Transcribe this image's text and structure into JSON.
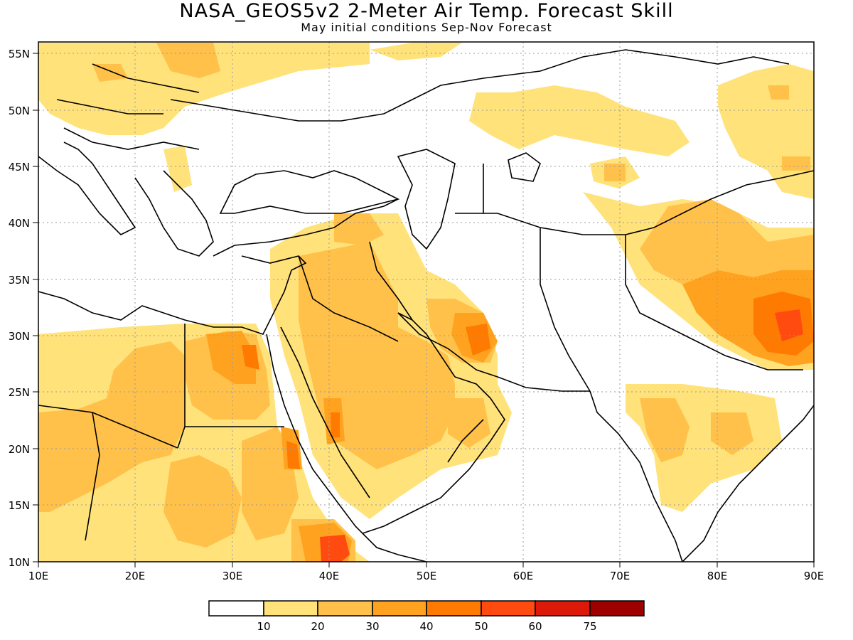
{
  "title": "NASA_GEOS5v2 2-Meter Air Temp. Forecast Skill",
  "subtitle": "May initial conditions  Sep-Nov Forecast",
  "map": {
    "lon_range": [
      10,
      90
    ],
    "lat_range": [
      10,
      56
    ],
    "x_ticks": [
      "10E",
      "20E",
      "30E",
      "40E",
      "50E",
      "60E",
      "70E",
      "80E",
      "90E"
    ],
    "y_ticks": [
      "10N",
      "15N",
      "20N",
      "25N",
      "30N",
      "35N",
      "40N",
      "45N",
      "50N",
      "55N"
    ],
    "grid": true
  },
  "legend": {
    "labels": [
      "10",
      "20",
      "30",
      "40",
      "50",
      "60",
      "75"
    ],
    "colors": [
      "#ffffff",
      "#ffe27a",
      "#ffc14a",
      "#ffa21f",
      "#ff7a00",
      "#ff4a10",
      "#dd1a0a",
      "#9e0000"
    ]
  }
}
